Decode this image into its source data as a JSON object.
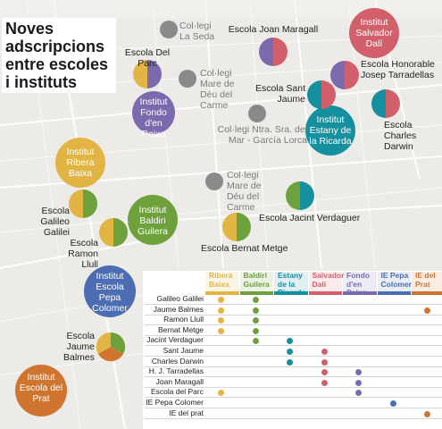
{
  "title": "Noves adscripcions entre escoles i instituts",
  "colors": {
    "ribera": "#e1b444",
    "baldiri": "#6ea13c",
    "ricarda": "#14909e",
    "dali": "#d2606a",
    "peixo": "#7b6bae",
    "pepa": "#4c6db1",
    "prat": "#cf7530",
    "gray": "#8a8a8a"
  },
  "map_labels": {
    "col_la_seda": "Col·legi La Seda",
    "joan_maragall": "Escola Joan Maragall",
    "inst_dali": "Institut Salvador Dalí",
    "del_parc": "Escola Del Parc",
    "mare_deu_1": "Col·legi Mare de Déu del Carme",
    "tarradellas": "Escola Honorable Josep Tarradellas",
    "inst_peixo": "Institut Fondo d'en Peixo",
    "sant_jaume": "Escola Sant Jaume",
    "inst_ricarda": "Institut Estany de la Ricarda",
    "garcia_lorca": "Col·legi Ntra. Sra. del Mar - García Lorca",
    "charles_darwin": "Escola Charles Darwin",
    "inst_ribera": "Institut Ribera Baixa",
    "mare_deu_2": "Col·legi Mare de Déu del Carme",
    "galileo": "Escola Galileo Galilei",
    "inst_baldiri": "Institut Baldiri Guilera",
    "jacint": "Escola Jacint Verdaguer",
    "ramon_llull": "Escola Ramon Llull",
    "bernat": "Escola Bernat Metge",
    "inst_pepa": "Institut Escola Pepa Colomer",
    "jaume_balmes": "Escola Jaume Balmes",
    "inst_prat": "Institut Escola del Prat"
  },
  "table": {
    "columns": [
      {
        "key": "ribera",
        "label": "Ribera Baixa"
      },
      {
        "key": "baldiri",
        "label": "Baldiri Guilera"
      },
      {
        "key": "ricarda",
        "label": "Estany de la Ricarda"
      },
      {
        "key": "dali",
        "label": "Salvador Dalí"
      },
      {
        "key": "peixo",
        "label": "Fondo d'en Peixo"
      },
      {
        "key": "pepa",
        "label": "IE Pepa Colomer"
      },
      {
        "key": "prat",
        "label": "IE del Prat"
      }
    ],
    "rows": [
      {
        "label": "Galileo Galilei",
        "cols": [
          "ribera",
          "baldiri"
        ]
      },
      {
        "label": "Jaume Balmes",
        "cols": [
          "ribera",
          "baldiri",
          "prat"
        ]
      },
      {
        "label": "Ramon Llull",
        "cols": [
          "ribera",
          "baldiri"
        ]
      },
      {
        "label": "Bernat Metge",
        "cols": [
          "ribera",
          "baldiri"
        ]
      },
      {
        "label": "Jacint Verdaguer",
        "cols": [
          "baldiri",
          "ricarda"
        ]
      },
      {
        "label": "Sant Jaume",
        "cols": [
          "ricarda",
          "dali"
        ]
      },
      {
        "label": "Charles Darwin",
        "cols": [
          "ricarda",
          "dali"
        ]
      },
      {
        "label": "H. J. Tarradellas",
        "cols": [
          "dali",
          "peixo"
        ]
      },
      {
        "label": "Joan Maragall",
        "cols": [
          "dali",
          "peixo"
        ]
      },
      {
        "label": "Escola del Parc",
        "cols": [
          "ribera",
          "peixo"
        ]
      },
      {
        "label": "IE Pepa Colomer",
        "cols": [
          "pepa"
        ]
      },
      {
        "label": "IE del prat",
        "cols": [
          "prat"
        ]
      }
    ]
  }
}
